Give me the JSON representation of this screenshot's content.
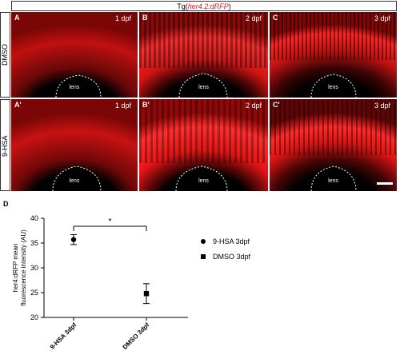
{
  "figure": {
    "title_prefix": "Tg(",
    "title_transgene": "her4.2:dRFP",
    "title_suffix": ")",
    "row_labels": [
      "DMSO",
      "9-HSA"
    ],
    "panels": [
      {
        "letter": "A",
        "age": "1 dpf",
        "lens": "lens"
      },
      {
        "letter": "B",
        "age": "2 dpf",
        "lens": "lens"
      },
      {
        "letter": "C",
        "age": "3 dpf",
        "lens": "lens"
      },
      {
        "letter": "A'",
        "age": "1 dpf",
        "lens": "lens"
      },
      {
        "letter": "B'",
        "age": "2 dpf",
        "lens": "lens"
      },
      {
        "letter": "C'",
        "age": "3 dpf",
        "lens": "lens"
      }
    ],
    "panel_d_label": "D",
    "colors": {
      "fluorescence": "#e01010",
      "background": "#000000"
    }
  },
  "chart_data": {
    "type": "scatter",
    "ylabel": "her4:dRFP mean fluorescence intensity (AU)",
    "ylim": [
      20,
      40
    ],
    "yticks": [
      20,
      25,
      30,
      35,
      40
    ],
    "categories": [
      "9-HSA 3dpf",
      "DMSO 3dpf"
    ],
    "series": [
      {
        "name": "9-HSA 3dpf",
        "marker": "circle",
        "value": 35.7,
        "error": 1.0
      },
      {
        "name": "DMSO 3dpf",
        "marker": "square",
        "value": 24.8,
        "error": 2.0
      }
    ],
    "significance": "*",
    "legend_position": "right"
  }
}
